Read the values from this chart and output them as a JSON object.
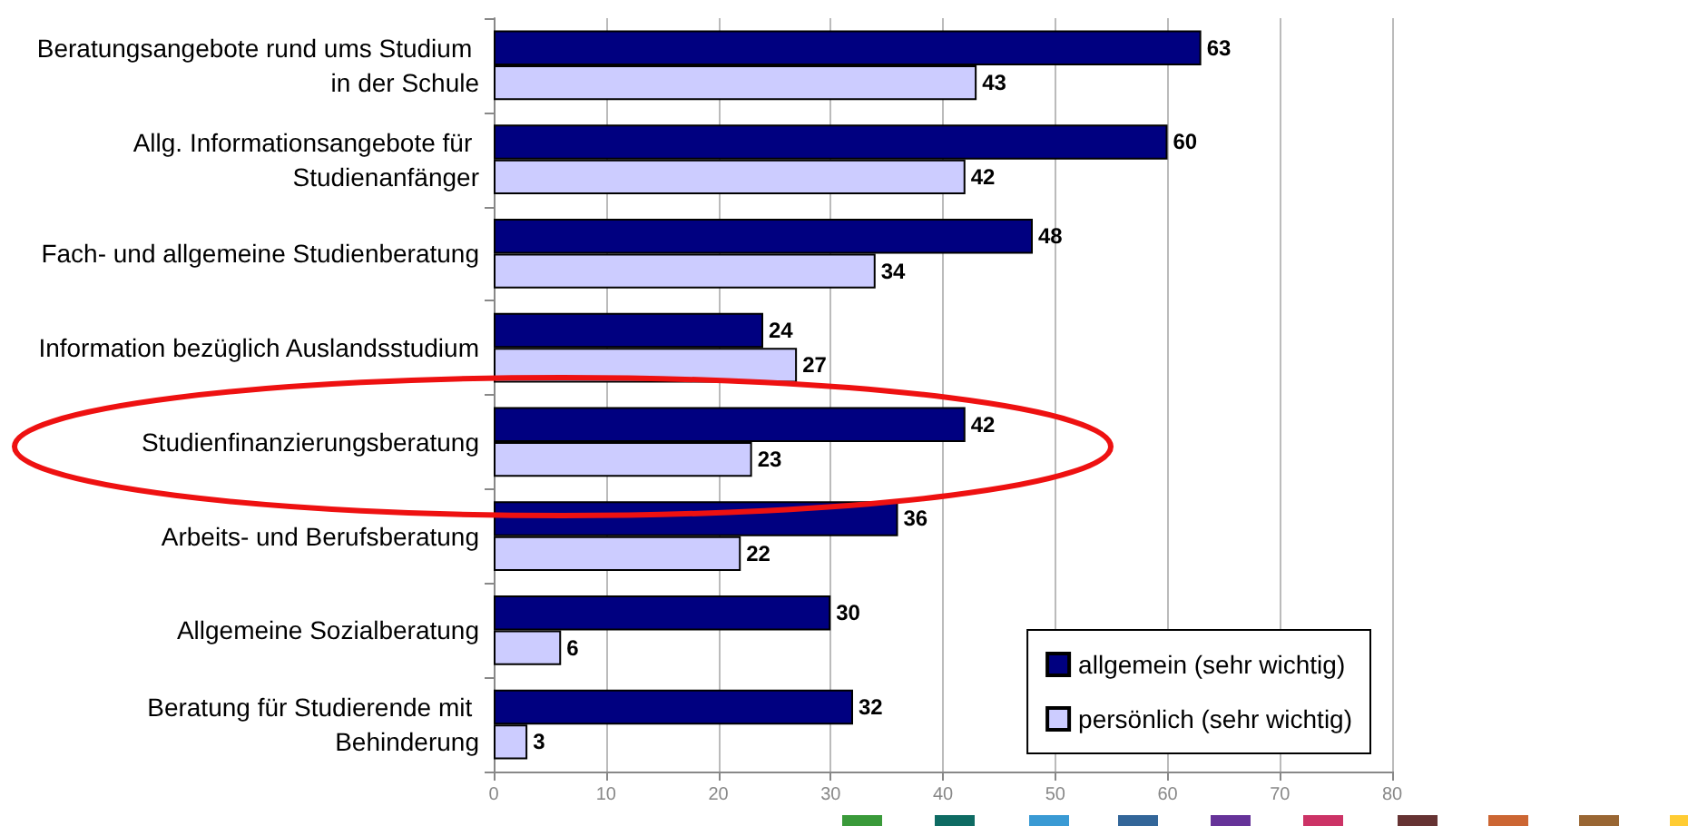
{
  "chart_data": {
    "type": "bar",
    "orientation": "horizontal",
    "categories": [
      "Beratungsangebote rund ums Studium in der Schule",
      "Allg. Informationsangebote für Studienanfänger",
      "Fach- und allgemeine Studienberatung",
      "Information bezüglich Auslandsstudium",
      "Studienfinanzierungsberatung",
      "Arbeits- und Berufsberatung",
      "Allgemeine Sozialberatung",
      "Beratung für Studierende mit Behinderung"
    ],
    "series": [
      {
        "name": "allgemein (sehr wichtig)",
        "color": "#000080",
        "values": [
          63,
          60,
          48,
          24,
          42,
          36,
          30,
          32
        ]
      },
      {
        "name": "persönlich (sehr wichtig)",
        "color": "#ccccff",
        "values": [
          43,
          42,
          34,
          27,
          23,
          22,
          6,
          3
        ]
      }
    ],
    "xlim": [
      0,
      80
    ],
    "xticks": [
      0,
      10,
      20,
      30,
      40,
      50,
      60,
      70,
      80
    ],
    "grid": "x",
    "legend": "bottom right",
    "data_labels": true
  }
}
